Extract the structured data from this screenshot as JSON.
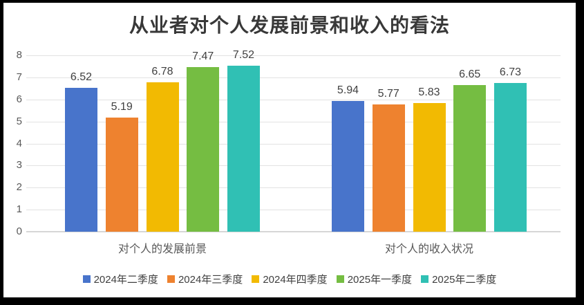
{
  "chart_data": {
    "type": "bar",
    "title": "从业者对个人发展前景和收入的看法",
    "categories": [
      "对个人的发展前景",
      "对个人的收入状况"
    ],
    "series": [
      {
        "name": "2024年二季度",
        "color": "#4874CB",
        "values": [
          6.52,
          5.94
        ]
      },
      {
        "name": "2024年三季度",
        "color": "#EE822F",
        "values": [
          5.19,
          5.77
        ]
      },
      {
        "name": "2024年四季度",
        "color": "#F2BA02",
        "values": [
          6.78,
          5.83
        ]
      },
      {
        "name": "2025年一季度",
        "color": "#75BD42",
        "values": [
          7.47,
          6.65
        ]
      },
      {
        "name": "2025年二季度",
        "color": "#30C0B4",
        "values": [
          7.52,
          6.73
        ]
      }
    ],
    "ylim": [
      0,
      8
    ],
    "yticks": [
      0,
      1,
      2,
      3,
      4,
      5,
      6,
      7,
      8
    ],
    "grid": true,
    "legend_position": "bottom",
    "value_labels": true,
    "colors": {
      "title_text": "#383838",
      "axis_text": "#595959",
      "value_label_text": "#404040",
      "gridline": "#e2e2e2",
      "axis_line": "#d6d6d6",
      "background": "#ffffff",
      "frame": "#000000"
    }
  }
}
